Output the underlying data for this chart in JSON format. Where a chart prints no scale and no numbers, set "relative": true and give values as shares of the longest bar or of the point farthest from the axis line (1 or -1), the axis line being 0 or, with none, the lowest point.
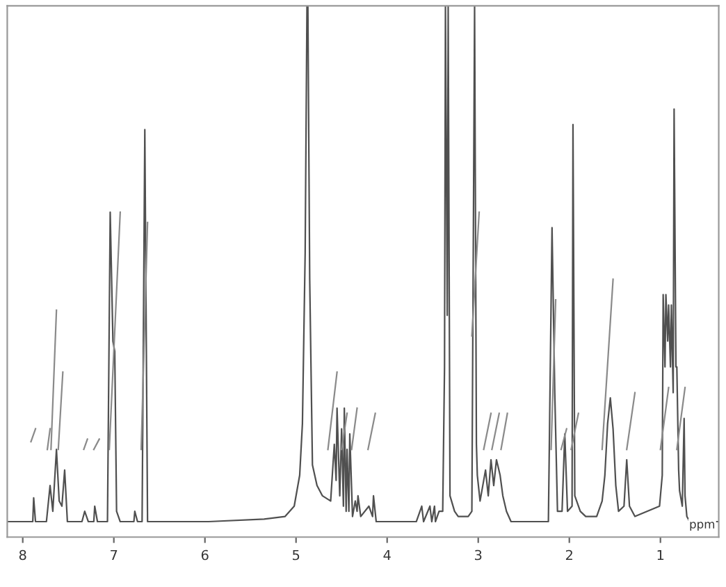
{
  "chart_data": {
    "type": "line",
    "relative": true,
    "xlabel": "ppm",
    "xlim": [
      8.17,
      0.36
    ],
    "xticks": [
      8,
      7,
      6,
      5,
      4,
      3,
      2,
      1
    ],
    "tick_labels": "x",
    "grid": false,
    "legend": false,
    "marker": "none",
    "line_style": "solid",
    "series": [
      {
        "color": "#505050",
        "x": [
          8.17,
          7.94,
          7.89,
          7.88,
          7.86,
          7.74,
          7.7,
          7.67,
          7.63,
          7.6,
          7.57,
          7.54,
          7.51,
          7.35,
          7.32,
          7.28,
          7.22,
          7.21,
          7.18,
          7.07,
          7.04,
          7.01,
          6.99,
          6.97,
          6.93,
          6.78,
          6.77,
          6.74,
          6.69,
          6.66,
          6.63,
          5.96,
          5.35,
          5.12,
          5.02,
          4.96,
          4.93,
          4.9,
          4.88,
          4.87,
          4.85,
          4.82,
          4.77,
          4.71,
          4.62,
          4.58,
          4.56,
          4.55,
          4.52,
          4.5,
          4.48,
          4.47,
          4.45,
          4.44,
          4.42,
          4.41,
          4.38,
          4.35,
          4.33,
          4.32,
          4.29,
          4.2,
          4.16,
          4.15,
          4.12,
          3.68,
          3.62,
          3.6,
          3.53,
          3.51,
          3.48,
          3.47,
          3.43,
          3.39,
          3.37,
          3.36,
          3.34,
          3.33,
          3.31,
          3.26,
          3.22,
          3.11,
          3.07,
          3.04,
          3.02,
          3.01,
          2.98,
          2.95,
          2.92,
          2.89,
          2.86,
          2.83,
          2.8,
          2.76,
          2.73,
          2.69,
          2.64,
          2.23,
          2.19,
          2.16,
          2.13,
          2.08,
          2.05,
          2.02,
          1.97,
          1.96,
          1.94,
          1.88,
          1.82,
          1.7,
          1.64,
          1.61,
          1.58,
          1.55,
          1.52,
          1.49,
          1.46,
          1.4,
          1.37,
          1.34,
          1.28,
          1.01,
          0.98,
          0.97,
          0.95,
          0.94,
          0.92,
          0.91,
          0.89,
          0.88,
          0.86,
          0.85,
          0.83,
          0.82,
          0.8,
          0.79,
          0.76,
          0.74,
          0.73,
          0.71,
          0.68,
          0.36
        ],
        "values": [
          0,
          0,
          0,
          0.046,
          0,
          0,
          0.07,
          0.02,
          0.14,
          0.04,
          0.03,
          0.1,
          0,
          0,
          0.02,
          0,
          0,
          0.03,
          0,
          0,
          0.6,
          0.35,
          0.33,
          0.02,
          0,
          0,
          0.02,
          0,
          0,
          0.76,
          0,
          0,
          0.005,
          0.01,
          0.03,
          0.09,
          0.19,
          0.52,
          1,
          1,
          0.47,
          0.11,
          0.07,
          0.05,
          0.04,
          0.15,
          0.08,
          0.22,
          0.05,
          0.18,
          0.03,
          0.22,
          0.02,
          0.14,
          0.02,
          0.17,
          0.01,
          0.04,
          0.02,
          0.05,
          0.01,
          0.03,
          0.01,
          0.05,
          0,
          0,
          0.03,
          0,
          0.03,
          0,
          0.03,
          0,
          0.02,
          0.02,
          0.3,
          1,
          0.4,
          1,
          0.05,
          0.02,
          0.01,
          0.01,
          0.02,
          1,
          0.15,
          0.09,
          0.04,
          0.07,
          0.1,
          0.05,
          0.12,
          0.07,
          0.12,
          0.09,
          0.05,
          0.02,
          0,
          0,
          0.57,
          0.25,
          0.02,
          0.02,
          0.17,
          0.02,
          0.03,
          0.77,
          0.05,
          0.02,
          0.01,
          0.01,
          0.04,
          0.09,
          0.19,
          0.24,
          0.18,
          0.07,
          0.02,
          0.03,
          0.12,
          0.03,
          0.01,
          0.03,
          0.09,
          0.44,
          0.3,
          0.44,
          0.35,
          0.42,
          0.3,
          0.42,
          0.25,
          0.8,
          0.3,
          0.3,
          0.1,
          0.06,
          0.03,
          0.2,
          0.05,
          0.01,
          0,
          0
        ]
      },
      {
        "color": "#8a8a8a",
        "x": [
          7.91,
          7.86,
          null,
          7.73,
          7.7,
          null,
          7.69,
          7.63,
          null,
          7.61,
          7.56,
          null,
          7.33,
          7.29,
          null,
          7.22,
          7.16,
          null,
          7.05,
          6.93,
          null,
          6.7,
          6.63,
          null,
          4.65,
          4.55,
          null,
          4.5,
          4.44,
          null,
          4.39,
          4.33,
          null,
          4.21,
          4.13,
          null,
          3.07,
          2.99,
          null,
          2.94,
          2.86,
          null,
          2.85,
          2.77,
          null,
          2.75,
          2.68,
          null,
          2.2,
          2.15,
          null,
          2.09,
          2.03,
          null,
          1.98,
          1.9,
          null,
          1.64,
          1.52,
          null,
          1.37,
          1.28,
          null,
          1.0,
          0.91,
          null,
          0.82,
          0.73
        ],
        "values": [
          0.155,
          0.18,
          null,
          0.14,
          0.18,
          null,
          0.14,
          0.41,
          null,
          0.14,
          0.29,
          null,
          0.14,
          0.16,
          null,
          0.14,
          0.16,
          null,
          0.14,
          0.6,
          null,
          0.14,
          0.58,
          null,
          0.14,
          0.29,
          null,
          0.14,
          0.21,
          null,
          0.14,
          0.22,
          null,
          0.14,
          0.21,
          null,
          0.36,
          0.6,
          null,
          0.14,
          0.21,
          null,
          0.14,
          0.21,
          null,
          0.14,
          0.21,
          null,
          0.14,
          0.43,
          null,
          0.14,
          0.18,
          null,
          0.14,
          0.21,
          null,
          0.14,
          0.47,
          null,
          0.14,
          0.25,
          null,
          0.14,
          0.26,
          null,
          0.14,
          0.26
        ]
      }
    ]
  }
}
